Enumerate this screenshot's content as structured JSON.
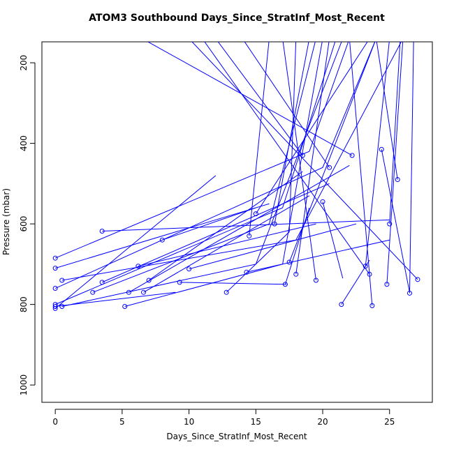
{
  "chart_data": {
    "type": "line",
    "title": "ATOM3 Southbound Days_Since_StratInf_Most_Recent",
    "x_label": "Days_Since_StratInf_Most_Recent",
    "y_label": "Pressure (mbar)",
    "xlim": [
      -1,
      28.2
    ],
    "ylim": [
      148,
      1043
    ],
    "y_reversed": true,
    "xticks": [
      0,
      5,
      10,
      15,
      20,
      25
    ],
    "yticks": [
      200,
      400,
      600,
      800,
      1000
    ],
    "color": "#0000ff",
    "series": [
      {
        "x": [
          0,
          17,
          21
        ],
        "values": [
          800,
          560,
          140
        ]
      },
      {
        "x": [
          0,
          12
        ],
        "values": [
          810,
          480
        ]
      },
      {
        "x": [
          0,
          19,
          22
        ],
        "values": [
          685,
          420,
          140
        ]
      },
      {
        "x": [
          0,
          16
        ],
        "values": [
          710,
          550
        ]
      },
      {
        "x": [
          0,
          20,
          24
        ],
        "values": [
          760,
          460,
          140
        ]
      },
      {
        "x": [
          0,
          9
        ],
        "values": [
          805,
          770
        ]
      },
      {
        "x": [
          0.5,
          18,
          26
        ],
        "values": [
          740,
          640,
          140
        ]
      },
      {
        "x": [
          0.5,
          15,
          21.5
        ],
        "values": [
          805,
          700,
          140
        ]
      },
      {
        "x": [
          3.5,
          25
        ],
        "values": [
          618,
          590
        ]
      },
      {
        "x": [
          3.5,
          20.5
        ],
        "values": [
          745,
          500
        ]
      },
      {
        "x": [
          5.2,
          17,
          20
        ],
        "values": [
          805,
          700,
          140
        ]
      },
      {
        "x": [
          5.5,
          22
        ],
        "values": [
          770,
          455
        ]
      },
      {
        "x": [
          6.2,
          19.5
        ],
        "values": [
          705,
          600
        ]
      },
      {
        "x": [
          7,
          18.5
        ],
        "values": [
          740,
          470
        ]
      },
      {
        "x": [
          8,
          15
        ],
        "values": [
          640,
          560
        ]
      },
      {
        "x": [
          9.3,
          17.3
        ],
        "values": [
          745,
          750
        ]
      },
      {
        "x": [
          10,
          22.5
        ],
        "values": [
          712,
          600
        ]
      },
      {
        "x": [
          27.1,
          10
        ],
        "values": [
          738,
          140
        ]
      },
      {
        "x": [
          12.8,
          17.5,
          18
        ],
        "values": [
          770,
          620,
          140
        ]
      },
      {
        "x": [
          14.3,
          25
        ],
        "values": [
          720,
          640
        ]
      },
      {
        "x": [
          14.5,
          16
        ],
        "values": [
          630,
          140
        ]
      },
      {
        "x": [
          15,
          23.5
        ],
        "values": [
          575,
          140
        ]
      },
      {
        "x": [
          16.4,
          17.5,
          19
        ],
        "values": [
          600,
          400,
          140
        ]
      },
      {
        "x": [
          17.2,
          19
        ],
        "values": [
          750,
          560
        ]
      },
      {
        "x": [
          17.5,
          24
        ],
        "values": [
          695,
          140
        ]
      },
      {
        "x": [
          18,
          20.5
        ],
        "values": [
          725,
          140
        ]
      },
      {
        "x": [
          19.5,
          17
        ],
        "values": [
          740,
          140
        ]
      },
      {
        "x": [
          20,
          21.5
        ],
        "values": [
          545,
          735
        ]
      },
      {
        "x": [
          21.4,
          23.5
        ],
        "values": [
          800,
          690
        ]
      },
      {
        "x": [
          23.2,
          25
        ],
        "values": [
          705,
          140
        ]
      },
      {
        "x": [
          23.7,
          22
        ],
        "values": [
          803,
          140
        ]
      },
      {
        "x": [
          24.4,
          26.5
        ],
        "values": [
          415,
          770
        ]
      },
      {
        "x": [
          24.8,
          26
        ],
        "values": [
          750,
          140
        ]
      },
      {
        "x": [
          25,
          25.8
        ],
        "values": [
          600,
          140
        ]
      },
      {
        "x": [
          25.6,
          24
        ],
        "values": [
          490,
          140
        ]
      },
      {
        "x": [
          20.5,
          14
        ],
        "values": [
          460,
          140
        ]
      },
      {
        "x": [
          22.2,
          6.5
        ],
        "values": [
          430,
          140
        ]
      },
      {
        "x": [
          26.5,
          26.8
        ],
        "values": [
          772,
          140
        ]
      },
      {
        "x": [
          2.8,
          16,
          19.5
        ],
        "values": [
          770,
          600,
          140
        ]
      },
      {
        "x": [
          6.6,
          19
        ],
        "values": [
          770,
          530
        ]
      },
      {
        "x": [
          23.5,
          11
        ],
        "values": [
          725,
          140
        ]
      },
      {
        "x": [
          18.5,
          12
        ],
        "values": [
          430,
          140
        ]
      }
    ]
  }
}
